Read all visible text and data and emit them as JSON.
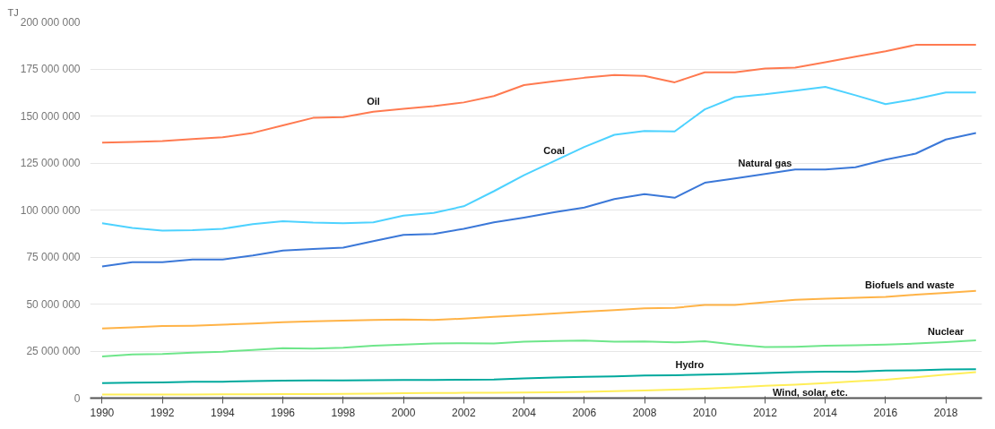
{
  "chart_data": {
    "type": "line",
    "ylabel": "TJ",
    "grid": "y",
    "line_style": "solid",
    "x": [
      1990,
      1991,
      1992,
      1993,
      1994,
      1995,
      1996,
      1997,
      1998,
      1999,
      2000,
      2001,
      2002,
      2003,
      2004,
      2005,
      2006,
      2007,
      2008,
      2009,
      2010,
      2011,
      2012,
      2013,
      2014,
      2015,
      2016,
      2017,
      2018,
      2019
    ],
    "xlim": [
      1989.6,
      2019.2
    ],
    "xticks": [
      1990,
      1992,
      1994,
      1996,
      1998,
      2000,
      2002,
      2004,
      2006,
      2008,
      2010,
      2012,
      2014,
      2016,
      2018
    ],
    "ylim": [
      0,
      200000000
    ],
    "yticks": [
      {
        "value": 0,
        "label": "0"
      },
      {
        "value": 25000000,
        "label": "25 000 000"
      },
      {
        "value": 50000000,
        "label": "50 000 000"
      },
      {
        "value": 75000000,
        "label": "75 000 000"
      },
      {
        "value": 100000000,
        "label": "100 000 000"
      },
      {
        "value": 125000000,
        "label": "125 000 000"
      },
      {
        "value": 150000000,
        "label": "150 000 000"
      },
      {
        "value": 175000000,
        "label": "175 000 000"
      },
      {
        "value": 200000000,
        "label": "200 000 000"
      }
    ],
    "series": [
      {
        "color": "#ff7a50",
        "values": [
          135800000,
          136200000,
          136700000,
          137700000,
          138700000,
          141000000,
          145000000,
          149000000,
          149400000,
          152300000,
          153800000,
          155200000,
          157200000,
          160600000,
          166400000,
          168400000,
          170300000,
          171800000,
          171300000,
          167900000,
          173200000,
          173200000,
          175200000,
          175700000,
          178600000,
          181500000,
          184400000,
          187800000,
          187800000,
          187800000
        ]
      },
      {
        "color": "#4dd2ff",
        "values": [
          93000000,
          90500000,
          89000000,
          89300000,
          90000000,
          92500000,
          94000000,
          93300000,
          93000000,
          93500000,
          97000000,
          98500000,
          102000000,
          110000000,
          118500000,
          126000000,
          133500000,
          140000000,
          142000000,
          141800000,
          153500000,
          160000000,
          161500000,
          163500000,
          165500000,
          161000000,
          156300000,
          159000000,
          162500000,
          162500000
        ]
      },
      {
        "color": "#3b78d8",
        "values": [
          70000000,
          72300000,
          72300000,
          73700000,
          73700000,
          75800000,
          78500000,
          79300000,
          80000000,
          83500000,
          86800000,
          87300000,
          90000000,
          93500000,
          96000000,
          98800000,
          101300000,
          105800000,
          108500000,
          106500000,
          114500000,
          116800000,
          119200000,
          121500000,
          121500000,
          122700000,
          126800000,
          130000000,
          137500000,
          141000000
        ]
      },
      {
        "color": "#ffb347",
        "values": [
          37000000,
          37600000,
          38300000,
          38500000,
          39000000,
          39700000,
          40300000,
          40800000,
          41200000,
          41600000,
          41800000,
          41500000,
          42300000,
          43200000,
          44000000,
          45000000,
          46000000,
          46800000,
          47700000,
          48000000,
          49500000,
          49500000,
          51000000,
          52300000,
          52800000,
          53300000,
          53800000,
          55000000,
          56000000,
          57000000
        ]
      },
      {
        "color": "#6ee68a",
        "values": [
          22200000,
          23200000,
          23500000,
          24200000,
          24700000,
          25600000,
          26500000,
          26300000,
          26800000,
          27800000,
          28500000,
          29000000,
          29200000,
          29000000,
          30000000,
          30300000,
          30600000,
          30000000,
          30100000,
          29600000,
          30200000,
          28500000,
          27100000,
          27300000,
          27800000,
          28100000,
          28500000,
          29000000,
          29800000,
          30700000
        ]
      },
      {
        "color": "#00a99d",
        "values": [
          8000000,
          8200000,
          8300000,
          8700000,
          8700000,
          9100000,
          9300000,
          9400000,
          9400000,
          9500000,
          9700000,
          9600000,
          9800000,
          9900000,
          10500000,
          11000000,
          11300000,
          11500000,
          12000000,
          12200000,
          12500000,
          12800000,
          13300000,
          13800000,
          14000000,
          14100000,
          14600000,
          14800000,
          15200000,
          15300000
        ]
      },
      {
        "color": "#ffee58",
        "values": [
          1900000,
          1900000,
          1900000,
          1900000,
          2000000,
          2000000,
          2100000,
          2200000,
          2300000,
          2400000,
          2600000,
          2700000,
          2800000,
          2900000,
          3000000,
          3100000,
          3300000,
          3700000,
          4100000,
          4500000,
          5000000,
          5700000,
          6500000,
          7200000,
          8000000,
          8900000,
          9800000,
          11100000,
          12500000,
          13800000
        ]
      }
    ],
    "annotations": [
      {
        "text": "Oil",
        "x": 1999,
        "y": 152300000
      },
      {
        "text": "Coal",
        "x": 2005,
        "y": 126000000
      },
      {
        "text": "Natural gas",
        "x": 2012,
        "y": 119200000
      },
      {
        "text": "Biofuels and waste",
        "x": 2016.8,
        "y": 54500000
      },
      {
        "text": "Nuclear",
        "x": 2018,
        "y": 29800000
      },
      {
        "text": "Hydro",
        "x": 2009.5,
        "y": 12300000
      },
      {
        "text": "Wind, solar, etc.",
        "x": 2013.5,
        "y": 7600000
      }
    ]
  }
}
